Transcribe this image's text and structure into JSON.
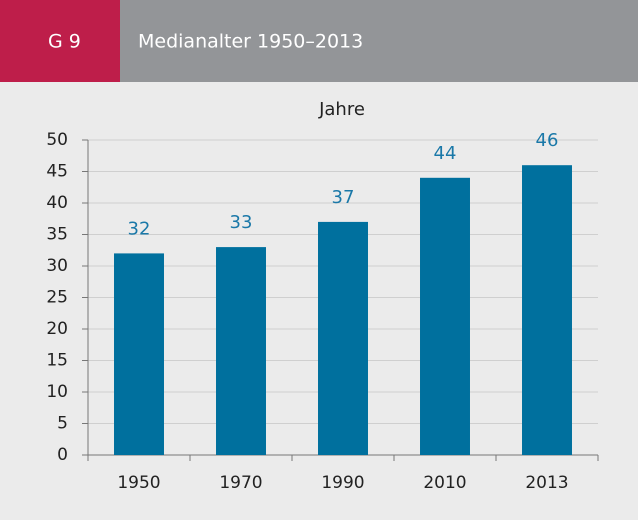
{
  "chart_data": {
    "type": "bar",
    "figure_label": "G 9",
    "title": "Medianalter 1950–2013",
    "y_label": "Jahre",
    "categories": [
      "1950",
      "1970",
      "1990",
      "2010",
      "2013"
    ],
    "values": [
      32,
      33,
      37,
      44,
      46
    ],
    "color": "#00709e",
    "label_color": "#1a78a8",
    "ylim": [
      0,
      50
    ],
    "yticks": [
      0,
      5,
      10,
      15,
      20,
      25,
      30,
      35,
      40,
      45,
      50
    ],
    "grid": true
  }
}
